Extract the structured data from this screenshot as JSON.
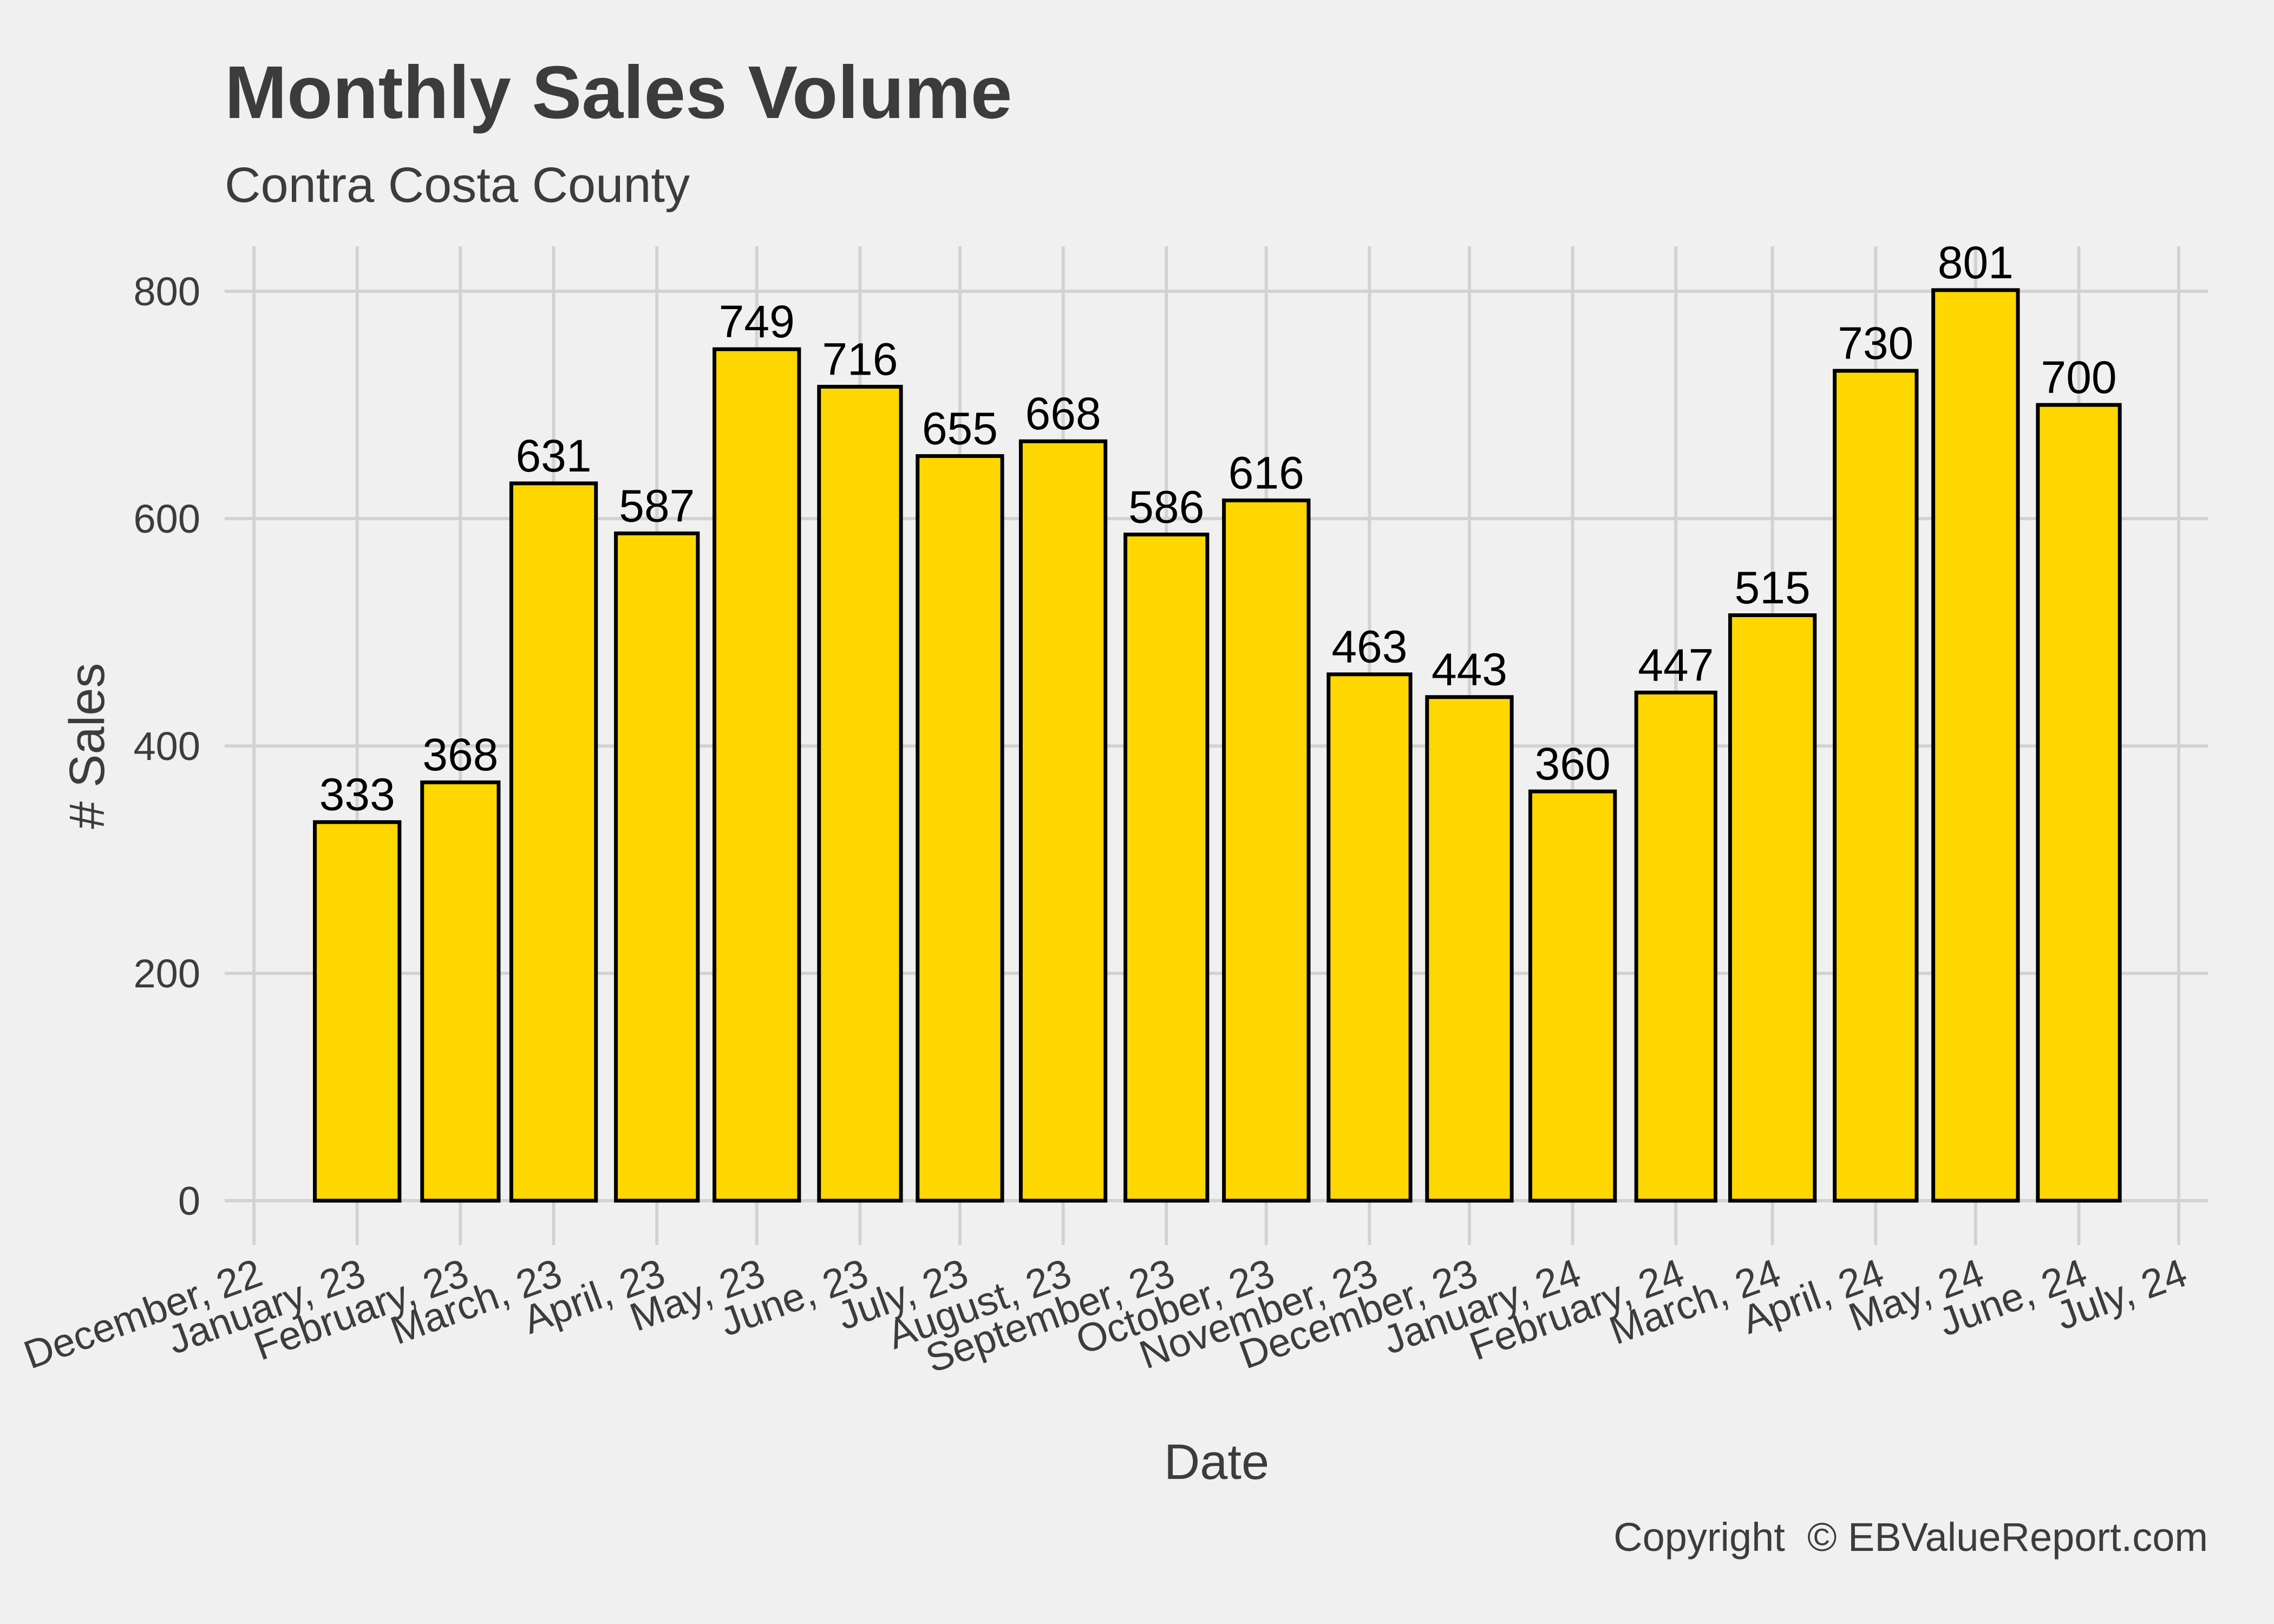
{
  "chart_data": {
    "type": "bar",
    "title": "Monthly Sales Volume",
    "subtitle": "Contra Costa County",
    "xlabel": "Date",
    "ylabel": "# Sales",
    "caption": "Copyright  © EBValueReport.com",
    "ylim": [
      0,
      820
    ],
    "yticks": [
      0,
      200,
      400,
      600,
      800
    ],
    "grid": true,
    "legend": "none",
    "bar_color": "#ffd700",
    "bar_outline": "#000000",
    "background": "#f0f0f0",
    "x_tick_labels": [
      "December, 22",
      "January, 23",
      "February, 23",
      "March, 23",
      "April, 23",
      "May, 23",
      "June, 23",
      "July, 23",
      "August, 23",
      "September, 23",
      "October, 23",
      "November, 23",
      "December, 23",
      "January, 24",
      "February, 24",
      "March, 24",
      "April, 24",
      "May, 24",
      "June, 24",
      "July, 24"
    ],
    "categories": [
      "January, 23",
      "February, 23",
      "March, 23",
      "April, 23",
      "May, 23",
      "June, 23",
      "July, 23",
      "August, 23",
      "September, 23",
      "October, 23",
      "November, 23",
      "December, 23",
      "January, 24",
      "February, 24",
      "March, 24",
      "April, 24",
      "May, 24",
      "June, 24"
    ],
    "values": [
      333,
      368,
      631,
      587,
      749,
      716,
      655,
      668,
      586,
      616,
      463,
      443,
      360,
      447,
      515,
      730,
      801,
      700
    ]
  }
}
